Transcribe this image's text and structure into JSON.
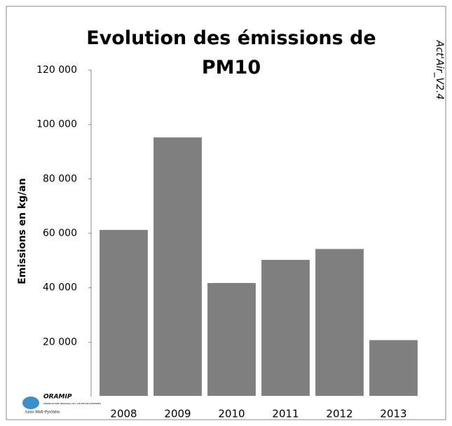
{
  "chart_data": {
    "type": "bar",
    "title": "Evolution des émissions de PM10",
    "y_label": "Emissions en kg/an",
    "version": "Act'Air_V2.4",
    "categories": [
      "2008",
      "2009",
      "2010",
      "2011",
      "2012",
      "2013"
    ],
    "values": [
      61500,
      95500,
      42000,
      50500,
      54500,
      21000
    ],
    "color": "#7f7f7f",
    "ylim": [
      0,
      120000
    ],
    "yticks": [
      {
        "value": 20000,
        "label": "20 000"
      },
      {
        "value": 40000,
        "label": "40 000"
      },
      {
        "value": 60000,
        "label": "60 000"
      },
      {
        "value": 80000,
        "label": "80 000"
      },
      {
        "value": 100000,
        "label": "100 000"
      },
      {
        "value": 120000,
        "label": "120 000"
      }
    ],
    "grid": false
  },
  "logo": {
    "name": "ORAMIP",
    "subtitle": "OBSERVATOIRE RÉGIONAL DE L'AIR EN MIDI-PYRÉNÉES",
    "caption": "Atmo Midi-Pyrénées"
  }
}
